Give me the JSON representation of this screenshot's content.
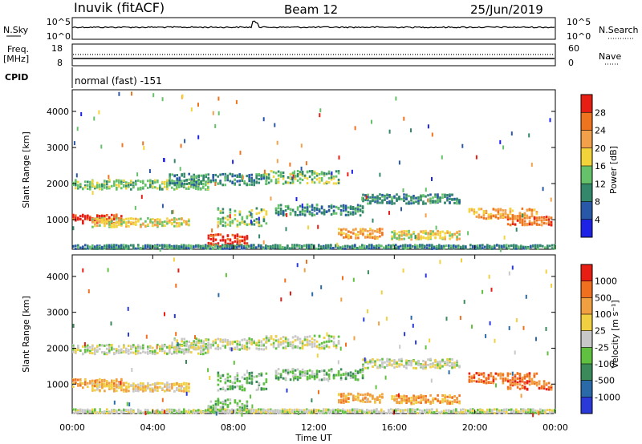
{
  "header": {
    "site": "Inuvik (fitACF)",
    "beam": "Beam 12",
    "date": "25/Jun/2019"
  },
  "nsky_panel": {
    "left_label": "N.Sky",
    "right_label": "N.Search",
    "ticks": [
      "10^5",
      "10^0"
    ]
  },
  "freq_panel": {
    "left_label_1": "Freq.",
    "left_label_2": "[MHz]",
    "left_ticks": [
      "18",
      "8"
    ],
    "right_label": "Nave",
    "right_ticks": [
      "60",
      "0"
    ]
  },
  "cpid": {
    "label": "CPID",
    "program": "normal (fast) -151"
  },
  "chart_data": [
    {
      "type": "heatmap",
      "name": "power",
      "ylabel": "Slant Range [km]",
      "xlabel": "",
      "ylim": [
        180,
        4600
      ],
      "yticks": [
        1000,
        2000,
        3000,
        4000
      ],
      "colorbar_label": "Power [dB]",
      "colorbar_ticks": [
        "4",
        "8",
        "12",
        "16",
        "20",
        "24",
        "28"
      ],
      "colors": [
        "#1e22e6",
        "#2a58a8",
        "#33876a",
        "#66c26a",
        "#f2d43a",
        "#f2a04a",
        "#ee7420",
        "#e81e14"
      ]
    },
    {
      "type": "heatmap",
      "name": "velocity",
      "ylabel": "Slant Range [km]",
      "xlabel": "Time UT",
      "ylim": [
        180,
        4600
      ],
      "yticks": [
        1000,
        2000,
        3000,
        4000
      ],
      "xticks": [
        "00:00",
        "04:00",
        "08:00",
        "12:00",
        "16:00",
        "20:00",
        "00:00"
      ],
      "colorbar_label": "Velocity [m s⁻¹]",
      "colorbar_ticks": [
        "1000",
        "500",
        "100",
        "25",
        "-25",
        "-100",
        "-500",
        "-1000"
      ],
      "colors": [
        "#2a3ad8",
        "#2a6aa8",
        "#3a8a5a",
        "#60c040",
        "#c8c8c8",
        "#f0d040",
        "#f0a040",
        "#f07020",
        "#e81e14"
      ]
    }
  ]
}
